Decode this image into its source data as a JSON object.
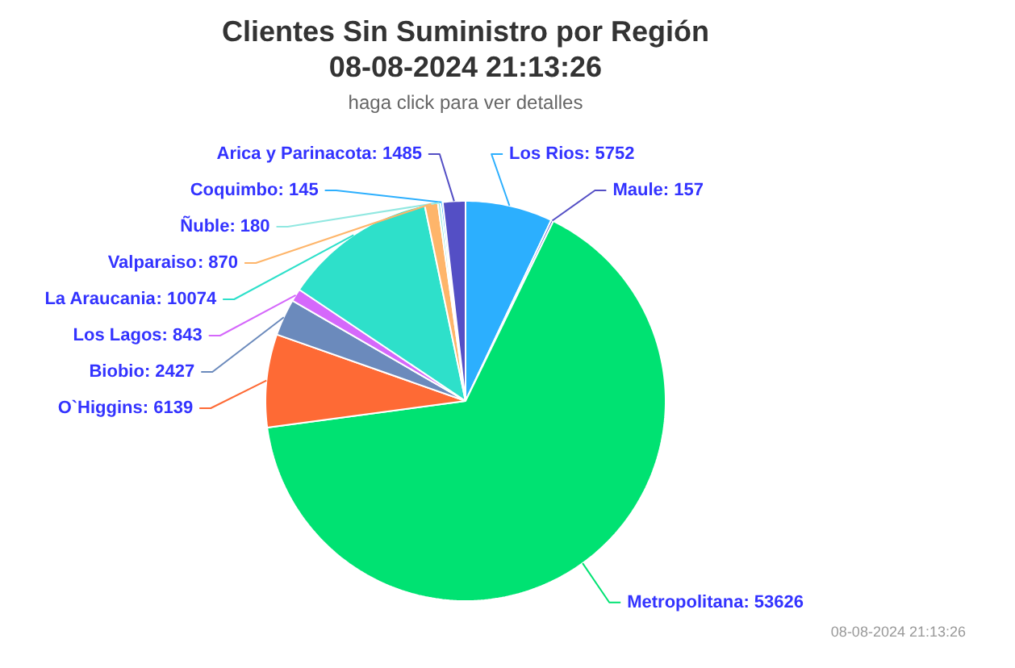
{
  "chart_data": {
    "type": "pie",
    "title": "Clientes Sin Suministro por Región\n08-08-2024 21:13:26",
    "subtitle": "haga click para ver detalles",
    "categories": [
      "Los Rios",
      "Maule",
      "Metropolitana",
      "O`Higgins",
      "Biobio",
      "Los Lagos",
      "La Araucania",
      "Valparaiso",
      "Ñuble",
      "Coquimbo",
      "Arica y Parinacota"
    ],
    "values": [
      5752,
      157,
      53626,
      6139,
      2427,
      843,
      10074,
      870,
      180,
      145,
      1485
    ],
    "value_labels": [
      ": 5752",
      ": 157",
      ": 53626",
      ": 6139",
      ": 2427",
      ": 843",
      ": 10074",
      ": 870",
      ": 180",
      ": 145",
      ": 1485"
    ],
    "colors": [
      "#2caffe",
      "#544fc5",
      "#00e272",
      "#fe6a35",
      "#6b8abc",
      "#d568fb",
      "#2ee0ca",
      "#feb56a",
      "#91e8e1",
      "#2caffe",
      "#544fc5"
    ],
    "annotations": [
      "08-08-2024 21:13:26"
    ]
  }
}
